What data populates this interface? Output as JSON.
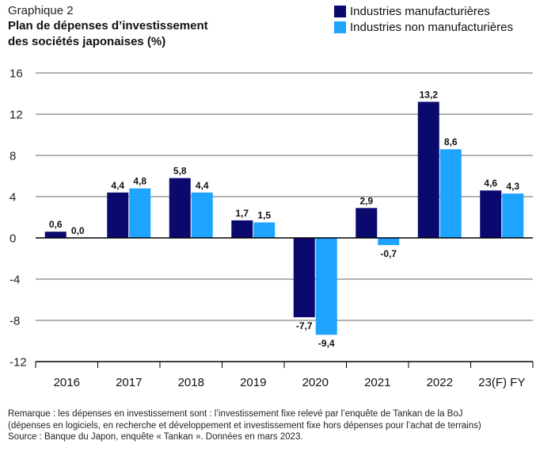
{
  "header": {
    "kicker": "Graphique 2",
    "title_line1": "Plan de dépenses d’investissement",
    "title_line2": "des sociétés japonaises (%)"
  },
  "colors": {
    "manufacturing": "#0a0a6e",
    "non_manufacturing": "#1ea3ff",
    "axis": "#000000",
    "grid": "#333333"
  },
  "chart_data": {
    "type": "bar",
    "title": "Plan de dépenses d’investissement des sociétés japonaises (%)",
    "xlabel": "",
    "ylabel": "",
    "ylim": [
      -12,
      16
    ],
    "yticks": [
      16,
      12,
      8,
      4,
      0,
      -4,
      -8,
      -12
    ],
    "ytick_labels": [
      "16",
      "12",
      "8",
      "4",
      "0",
      "-4",
      "-8",
      "-12"
    ],
    "grid": true,
    "legend_position": "top-right",
    "categories": [
      "2016",
      "2017",
      "2018",
      "2019",
      "2020",
      "2021",
      "2022",
      "23(F) FY"
    ],
    "series": [
      {
        "name": "Industries manufacturières",
        "values": [
          0.6,
          4.4,
          5.8,
          1.7,
          -7.7,
          2.9,
          13.2,
          4.6
        ],
        "labels": [
          "0,6",
          "4,4",
          "5,8",
          "1,7",
          "-7,7",
          "2,9",
          "13,2",
          "4,6"
        ]
      },
      {
        "name": "Industries non manufacturières",
        "values": [
          0.0,
          4.8,
          4.4,
          1.5,
          -9.4,
          -0.7,
          8.6,
          4.3
        ],
        "labels": [
          "0,0",
          "4,8",
          "4,4",
          "1,5",
          "-9,4",
          "-0,7",
          "8,6",
          "4,3"
        ]
      }
    ]
  },
  "notes": {
    "line1": "Remarque : les dépenses en investissement sont : l’investissement fixe relevé par l’enquête de Tankan de la BoJ",
    "line2": "(dépenses en logiciels, en recherche et développement et investissement fixe hors dépenses pour l’achat de terrains)",
    "line3": "Source : Banque du Japon, enquête « Tankan ». Données en mars 2023."
  }
}
